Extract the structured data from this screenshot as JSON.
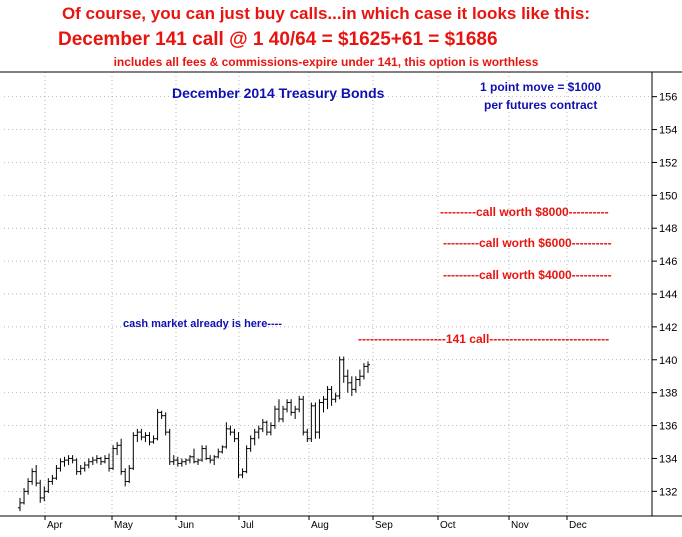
{
  "header": {
    "line1": "Of course, you can just buy calls...in which case it looks like this:",
    "line2": "December 141 call @ 1 40/64 = $1625+61 = $1686",
    "line3": "includes all fees & commissions-expire under 141, this option is worthless"
  },
  "chart_data": {
    "type": "ohlc",
    "title": "December 2014 Treasury Bonds",
    "note": [
      "1 point move = $1000",
      "per futures contract"
    ],
    "x_ticks": [
      "Apr",
      "May",
      "Jun",
      "Jul",
      "Aug",
      "Sep",
      "Oct",
      "Nov",
      "Dec"
    ],
    "y_ticks": [
      132,
      134,
      136,
      138,
      140,
      142,
      144,
      146,
      148,
      150,
      152,
      154,
      156
    ],
    "ylim": [
      130.5,
      157.5
    ],
    "grid": true,
    "annotations": [
      {
        "text": "cash market already is here----",
        "color": "#1010b0"
      },
      {
        "text": "----------------------141 call------------------------------",
        "color": "#e8140f",
        "level": 141
      },
      {
        "text": "---------call worth $4000----------",
        "color": "#e8140f",
        "level": 145
      },
      {
        "text": "---------call worth $6000----------",
        "color": "#e8140f",
        "level": 147
      },
      {
        "text": "---------call worth $8000----------",
        "color": "#e8140f",
        "level": 149
      }
    ],
    "series": [
      {
        "values": [
          [
            131.0,
            131.6,
            130.8,
            131.3
          ],
          [
            131.3,
            132.2,
            131.2,
            132.0
          ],
          [
            132.0,
            132.8,
            131.8,
            132.6
          ],
          [
            132.6,
            133.4,
            132.4,
            133.2
          ],
          [
            133.2,
            133.6,
            132.3,
            132.5
          ],
          [
            132.5,
            132.7,
            131.3,
            131.6
          ],
          [
            131.6,
            132.3,
            131.4,
            132.0
          ],
          [
            132.0,
            132.8,
            131.9,
            132.6
          ],
          [
            132.6,
            133.0,
            132.4,
            132.8
          ],
          [
            132.8,
            133.6,
            132.7,
            133.4
          ],
          [
            133.4,
            134.0,
            133.2,
            133.8
          ],
          [
            133.8,
            134.1,
            133.5,
            133.9
          ],
          [
            133.9,
            134.2,
            133.6,
            134.0
          ],
          [
            134.0,
            134.2,
            133.7,
            133.9
          ],
          [
            133.9,
            134.0,
            133.0,
            133.2
          ],
          [
            133.2,
            133.6,
            133.0,
            133.4
          ],
          [
            133.4,
            133.8,
            133.2,
            133.6
          ],
          [
            133.6,
            134.0,
            133.4,
            133.8
          ],
          [
            133.8,
            134.1,
            133.6,
            133.9
          ],
          [
            133.9,
            134.2,
            133.7,
            134.0
          ],
          [
            134.0,
            134.1,
            133.6,
            133.8
          ],
          [
            133.8,
            134.2,
            133.7,
            134.0
          ],
          [
            134.0,
            134.3,
            133.2,
            133.4
          ],
          [
            133.4,
            134.8,
            133.3,
            134.6
          ],
          [
            134.6,
            135.0,
            134.2,
            134.8
          ],
          [
            134.8,
            135.2,
            133.0,
            133.2
          ],
          [
            133.2,
            133.4,
            132.3,
            132.6
          ],
          [
            132.6,
            133.6,
            132.5,
            133.4
          ],
          [
            133.4,
            135.6,
            133.3,
            135.4
          ],
          [
            135.4,
            135.8,
            135.0,
            135.6
          ],
          [
            135.6,
            135.8,
            135.1,
            135.3
          ],
          [
            135.3,
            135.6,
            135.0,
            135.4
          ],
          [
            135.4,
            135.6,
            134.8,
            135.0
          ],
          [
            135.0,
            135.4,
            134.9,
            135.2
          ],
          [
            135.2,
            137.0,
            135.1,
            136.8
          ],
          [
            136.8,
            136.9,
            136.4,
            136.6
          ],
          [
            136.6,
            136.8,
            135.4,
            135.6
          ],
          [
            135.6,
            135.8,
            133.6,
            133.8
          ],
          [
            133.8,
            134.2,
            133.6,
            133.9
          ],
          [
            133.9,
            134.1,
            133.5,
            133.7
          ],
          [
            133.7,
            134.0,
            133.5,
            133.8
          ],
          [
            133.8,
            134.0,
            133.6,
            133.9
          ],
          [
            133.9,
            134.2,
            133.7,
            134.1
          ],
          [
            134.1,
            134.6,
            133.7,
            133.8
          ],
          [
            133.8,
            134.0,
            133.6,
            133.9
          ],
          [
            133.9,
            134.8,
            133.8,
            134.6
          ],
          [
            134.6,
            134.8,
            133.9,
            134.0
          ],
          [
            134.0,
            134.2,
            133.7,
            133.9
          ],
          [
            133.9,
            134.2,
            133.6,
            134.1
          ],
          [
            134.1,
            134.6,
            134.0,
            134.4
          ],
          [
            134.4,
            134.8,
            134.3,
            134.7
          ],
          [
            134.7,
            136.2,
            134.6,
            135.8
          ],
          [
            135.8,
            136.0,
            135.4,
            135.6
          ],
          [
            135.6,
            135.8,
            135.0,
            135.2
          ],
          [
            135.2,
            135.6,
            132.8,
            133.0
          ],
          [
            133.0,
            133.4,
            132.8,
            133.2
          ],
          [
            133.2,
            134.8,
            133.1,
            134.6
          ],
          [
            134.6,
            135.4,
            134.4,
            135.2
          ],
          [
            135.2,
            135.8,
            134.8,
            135.6
          ],
          [
            135.6,
            136.0,
            135.2,
            135.8
          ],
          [
            135.8,
            136.4,
            135.6,
            136.2
          ],
          [
            136.2,
            136.3,
            135.4,
            135.6
          ],
          [
            135.6,
            136.2,
            135.4,
            136.0
          ],
          [
            136.0,
            137.2,
            135.8,
            137.0
          ],
          [
            137.0,
            137.6,
            136.2,
            136.4
          ],
          [
            136.4,
            137.2,
            136.2,
            137.0
          ],
          [
            137.0,
            137.6,
            136.8,
            137.4
          ],
          [
            137.4,
            137.6,
            136.6,
            136.8
          ],
          [
            136.8,
            137.2,
            136.4,
            137.0
          ],
          [
            137.0,
            137.8,
            136.8,
            137.6
          ],
          [
            137.6,
            137.8,
            135.4,
            135.6
          ],
          [
            135.6,
            135.8,
            135.0,
            135.2
          ],
          [
            135.2,
            137.4,
            135.0,
            137.2
          ],
          [
            137.2,
            137.4,
            135.2,
            135.6
          ],
          [
            135.6,
            137.6,
            135.2,
            137.4
          ],
          [
            137.4,
            137.8,
            136.8,
            137.6
          ],
          [
            137.6,
            138.4,
            137.0,
            138.2
          ],
          [
            138.2,
            138.4,
            137.2,
            137.6
          ],
          [
            137.6,
            138.0,
            137.4,
            137.8
          ],
          [
            137.8,
            140.2,
            137.6,
            140.0
          ],
          [
            140.0,
            140.2,
            138.6,
            139.0
          ],
          [
            139.0,
            139.4,
            138.0,
            138.6
          ],
          [
            138.6,
            139.0,
            137.8,
            138.2
          ],
          [
            138.2,
            139.0,
            138.0,
            138.8
          ],
          [
            138.8,
            139.4,
            138.4,
            139.0
          ],
          [
            139.0,
            139.8,
            138.8,
            139.6
          ],
          [
            139.6,
            139.9,
            139.2,
            139.7
          ]
        ]
      }
    ]
  }
}
